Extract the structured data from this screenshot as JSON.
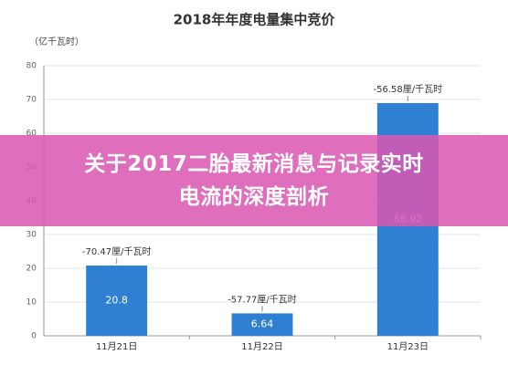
{
  "chart_data": {
    "type": "bar",
    "title": "2018年年度电量集中竞价",
    "y_label": "（亿千瓦时）",
    "categories": [
      "11月21日",
      "11月22日",
      "11月23日"
    ],
    "values": [
      20.8,
      6.64,
      68.92
    ],
    "annotations": [
      "-70.47厘/千瓦时",
      "-57.77厘/千瓦时",
      "-56.58厘/千瓦时"
    ],
    "color": "#2f7fd3",
    "ylim": [
      0,
      80
    ],
    "yticks": [
      0,
      10,
      20,
      30,
      40,
      50,
      60,
      70,
      80
    ],
    "grid": true
  },
  "banner": {
    "lines": [
      "关于2017二胎最新消息与记录实时",
      "电流的深度剖析"
    ]
  }
}
